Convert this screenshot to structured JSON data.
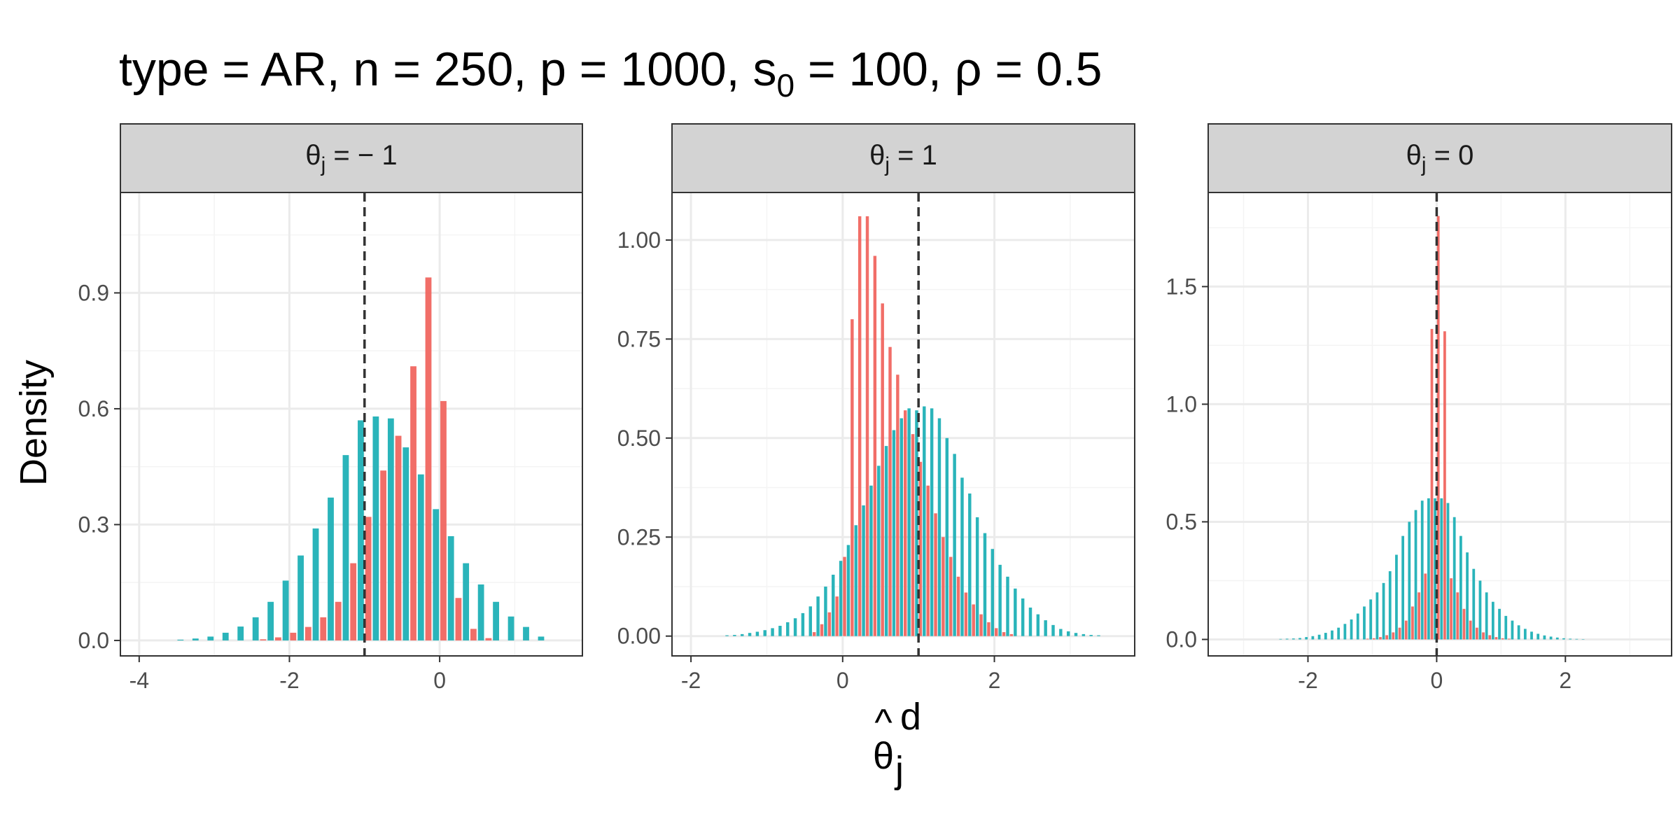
{
  "title": {
    "base": "type = AR, n = 250, p = 1000, s",
    "sub": "0",
    "rest": " = 100, ρ = 0.5"
  },
  "y_axis_title": "Density",
  "x_axis_title": {
    "base": "θ",
    "hat": "^",
    "sup": "d",
    "sub": "j"
  },
  "colors": {
    "series_red": "#F0625B",
    "series_teal": "#1FB0B6",
    "grid_major": "#EBEBEB",
    "grid_minor": "#F4F4F4",
    "strip_fill": "#D3D3D3",
    "frame": "#333333",
    "vline": "#333333"
  },
  "chart_data": [
    {
      "type": "bar",
      "strip": {
        "base": "θ",
        "sub": "j",
        "rest": " = − 1"
      },
      "xlim": [
        -4.25,
        1.9
      ],
      "ylim": [
        -0.04,
        1.16
      ],
      "x_ticks": [
        -4,
        -2,
        0
      ],
      "x_tick_labels": [
        "-4",
        "-2",
        "0"
      ],
      "y_ticks": [
        0,
        0.3,
        0.6,
        0.9
      ],
      "y_tick_labels": [
        "0.0",
        "0.3",
        "0.6",
        "0.9"
      ],
      "vline": -1,
      "binwidth": 0.2,
      "series": [
        {
          "color": "series_teal",
          "x": [
            -3.4,
            -3.2,
            -3.0,
            -2.8,
            -2.6,
            -2.4,
            -2.2,
            -2.0,
            -1.8,
            -1.6,
            -1.4,
            -1.2,
            -1.0,
            -0.8,
            -0.6,
            -0.4,
            -0.2,
            0.0,
            0.2,
            0.4,
            0.6,
            0.8,
            1.0,
            1.2,
            1.4
          ],
          "values": [
            0.002,
            0.005,
            0.01,
            0.02,
            0.036,
            0.06,
            0.1,
            0.155,
            0.22,
            0.29,
            0.37,
            0.48,
            0.57,
            0.58,
            0.575,
            0.5,
            0.43,
            0.34,
            0.27,
            0.2,
            0.145,
            0.1,
            0.062,
            0.035,
            0.01
          ]
        },
        {
          "color": "series_red",
          "x": [
            -2.4,
            -2.2,
            -2.0,
            -1.8,
            -1.6,
            -1.4,
            -1.2,
            -1.0,
            -0.8,
            -0.6,
            -0.4,
            -0.2,
            0.0,
            0.2,
            0.4,
            0.6
          ],
          "values": [
            0.003,
            0.008,
            0.02,
            0.035,
            0.06,
            0.1,
            0.2,
            0.32,
            0.44,
            0.53,
            0.71,
            0.94,
            0.62,
            0.11,
            0.03,
            0.006
          ]
        }
      ]
    },
    {
      "type": "bar",
      "strip": {
        "base": "θ",
        "sub": "j",
        "rest": " = 1"
      },
      "xlim": [
        -2.25,
        3.85
      ],
      "ylim": [
        -0.05,
        1.12
      ],
      "x_ticks": [
        -2,
        0,
        2
      ],
      "x_tick_labels": [
        "-2",
        "0",
        "2"
      ],
      "y_ticks": [
        0,
        0.25,
        0.5,
        0.75,
        1.0
      ],
      "y_tick_labels": [
        "0.00",
        "0.25",
        "0.50",
        "0.75",
        "1.00"
      ],
      "vline": 1,
      "binwidth": 0.1,
      "series": [
        {
          "color": "series_teal",
          "x": [
            -1.5,
            -1.4,
            -1.3,
            -1.2,
            -1.1,
            -1.0,
            -0.9,
            -0.8,
            -0.7,
            -0.6,
            -0.5,
            -0.4,
            -0.3,
            -0.2,
            -0.1,
            0.0,
            0.1,
            0.2,
            0.3,
            0.4,
            0.5,
            0.6,
            0.7,
            0.8,
            0.9,
            1.0,
            1.1,
            1.2,
            1.3,
            1.4,
            1.5,
            1.6,
            1.7,
            1.8,
            1.9,
            2.0,
            2.1,
            2.2,
            2.3,
            2.4,
            2.5,
            2.6,
            2.7,
            2.8,
            2.9,
            3.0,
            3.1,
            3.2,
            3.3,
            3.4
          ],
          "values": [
            0.002,
            0.003,
            0.005,
            0.008,
            0.011,
            0.015,
            0.02,
            0.026,
            0.035,
            0.045,
            0.058,
            0.075,
            0.1,
            0.125,
            0.155,
            0.19,
            0.23,
            0.28,
            0.33,
            0.38,
            0.43,
            0.48,
            0.52,
            0.55,
            0.575,
            0.57,
            0.58,
            0.575,
            0.55,
            0.5,
            0.46,
            0.4,
            0.36,
            0.3,
            0.26,
            0.22,
            0.18,
            0.15,
            0.12,
            0.095,
            0.072,
            0.055,
            0.04,
            0.028,
            0.018,
            0.012,
            0.008,
            0.005,
            0.003,
            0.002
          ]
        },
        {
          "color": "series_red",
          "x": [
            -0.4,
            -0.3,
            -0.2,
            -0.1,
            0.0,
            0.1,
            0.2,
            0.3,
            0.4,
            0.5,
            0.6,
            0.7,
            0.8,
            0.9,
            1.0,
            1.1,
            1.2,
            1.3,
            1.4,
            1.5,
            1.6,
            1.7,
            1.8,
            1.9,
            2.0,
            2.1,
            2.2
          ],
          "values": [
            0.01,
            0.03,
            0.06,
            0.1,
            0.2,
            0.8,
            1.06,
            1.06,
            0.96,
            0.84,
            0.73,
            0.66,
            0.57,
            0.51,
            0.44,
            0.38,
            0.31,
            0.25,
            0.2,
            0.15,
            0.11,
            0.08,
            0.055,
            0.035,
            0.02,
            0.01,
            0.005
          ]
        }
      ]
    },
    {
      "type": "bar",
      "strip": {
        "base": "θ",
        "sub": "j",
        "rest": " = 0"
      },
      "xlim": [
        -3.55,
        3.65
      ],
      "ylim": [
        -0.07,
        1.9
      ],
      "x_ticks": [
        -2,
        0,
        2
      ],
      "x_tick_labels": [
        "-2",
        "0",
        "2"
      ],
      "y_ticks": [
        0,
        0.5,
        1.0,
        1.5
      ],
      "y_tick_labels": [
        "0.0",
        "0.5",
        "1.0",
        "1.5"
      ],
      "vline": 0,
      "binwidth": 0.1,
      "series": [
        {
          "color": "series_teal",
          "x": [
            -2.4,
            -2.3,
            -2.2,
            -2.1,
            -2.0,
            -1.9,
            -1.8,
            -1.7,
            -1.6,
            -1.5,
            -1.4,
            -1.3,
            -1.2,
            -1.1,
            -1.0,
            -0.9,
            -0.8,
            -0.7,
            -0.6,
            -0.5,
            -0.4,
            -0.3,
            -0.2,
            -0.1,
            0.0,
            0.1,
            0.2,
            0.3,
            0.4,
            0.5,
            0.6,
            0.7,
            0.8,
            0.9,
            1.0,
            1.1,
            1.2,
            1.3,
            1.4,
            1.5,
            1.6,
            1.7,
            1.8,
            1.9,
            2.0,
            2.1,
            2.2,
            2.3
          ],
          "values": [
            0.002,
            0.003,
            0.004,
            0.006,
            0.01,
            0.014,
            0.02,
            0.028,
            0.038,
            0.05,
            0.066,
            0.085,
            0.11,
            0.14,
            0.17,
            0.2,
            0.24,
            0.29,
            0.36,
            0.44,
            0.5,
            0.55,
            0.59,
            0.6,
            0.6,
            0.6,
            0.58,
            0.52,
            0.44,
            0.37,
            0.3,
            0.25,
            0.2,
            0.16,
            0.13,
            0.1,
            0.08,
            0.06,
            0.045,
            0.033,
            0.024,
            0.017,
            0.012,
            0.008,
            0.005,
            0.003,
            0.002,
            0.001
          ]
        },
        {
          "color": "series_red",
          "x": [
            -1.1,
            -1.0,
            -0.9,
            -0.8,
            -0.7,
            -0.6,
            -0.5,
            -0.4,
            -0.3,
            -0.2,
            -0.1,
            0.0,
            0.1,
            0.2,
            0.3,
            0.4,
            0.5,
            0.6,
            0.7,
            0.8,
            0.9,
            1.0,
            1.1
          ],
          "values": [
            0.003,
            0.005,
            0.01,
            0.018,
            0.03,
            0.05,
            0.08,
            0.14,
            0.2,
            0.28,
            1.32,
            1.8,
            1.31,
            0.26,
            0.2,
            0.13,
            0.08,
            0.05,
            0.03,
            0.018,
            0.01,
            0.005,
            0.003
          ]
        }
      ]
    }
  ]
}
